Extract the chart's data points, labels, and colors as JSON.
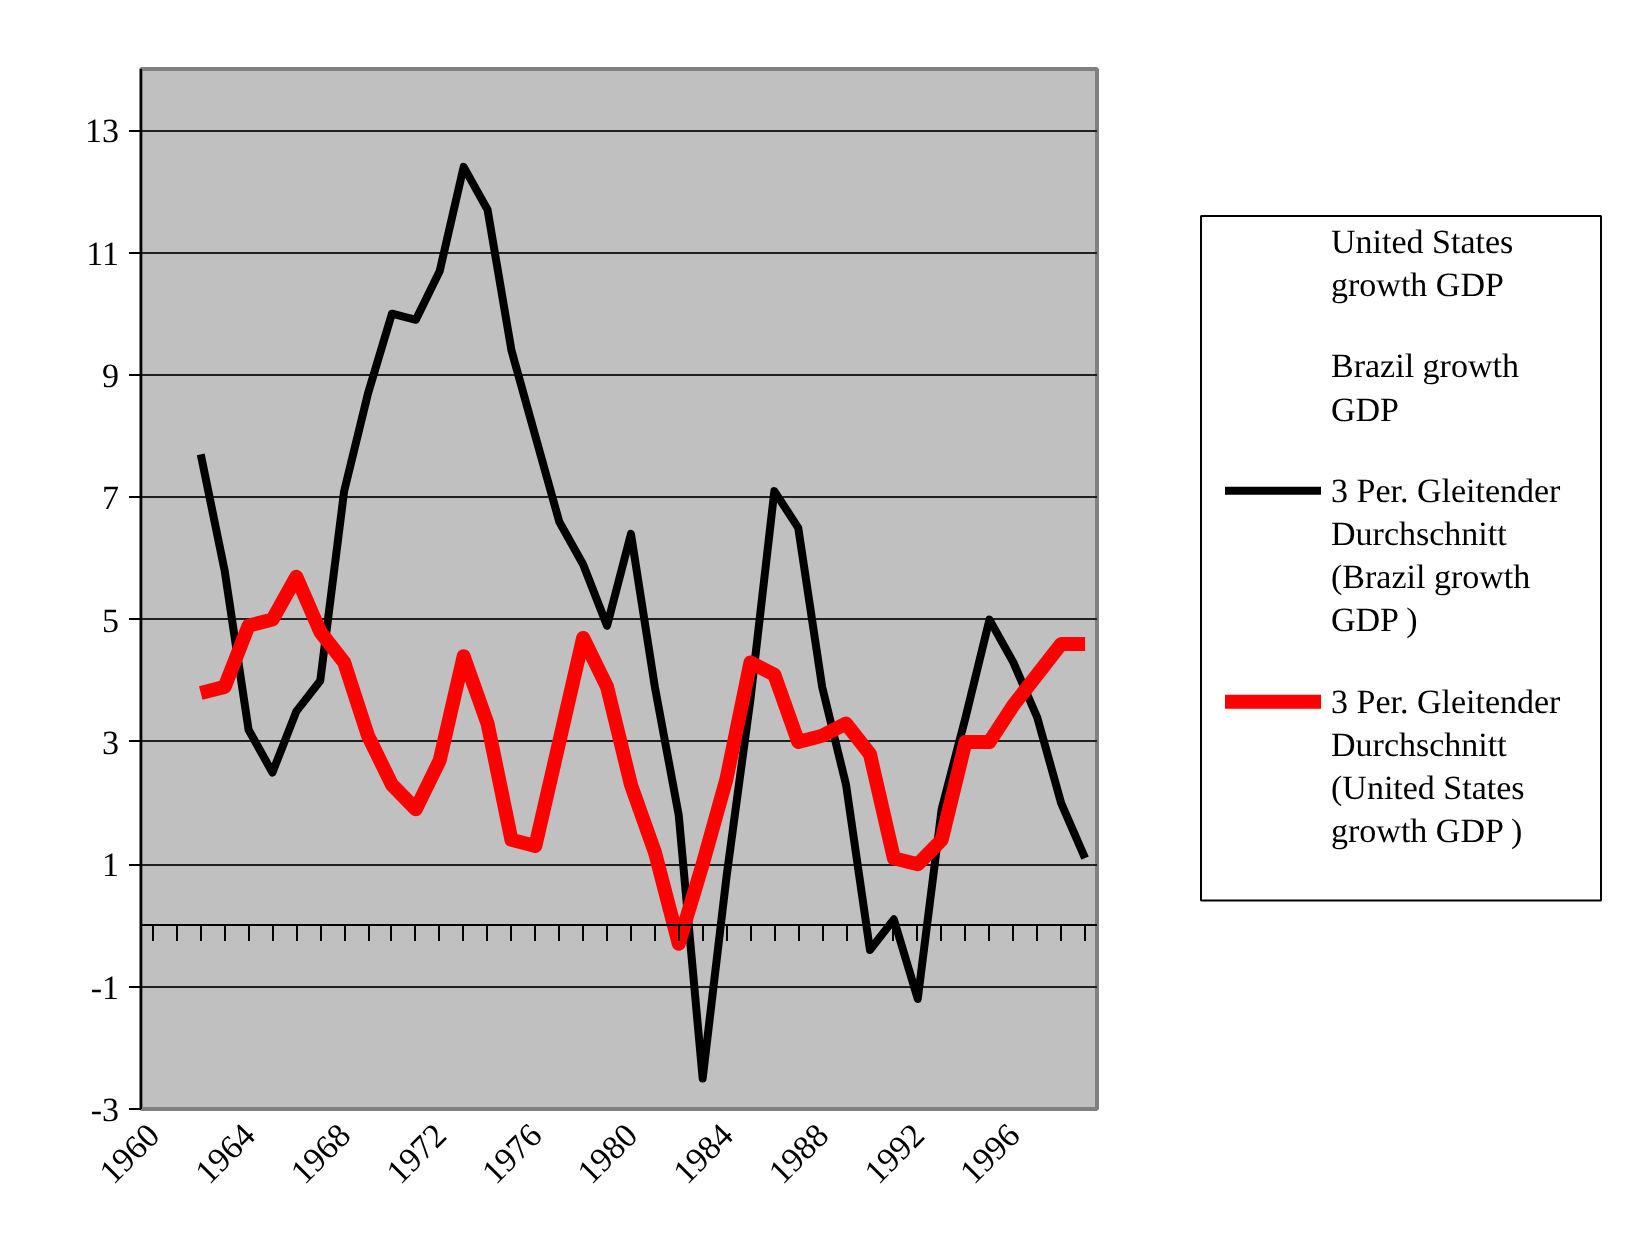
{
  "chart_data": {
    "type": "line",
    "x": [
      1962,
      1963,
      1964,
      1965,
      1966,
      1967,
      1968,
      1969,
      1970,
      1971,
      1972,
      1973,
      1974,
      1975,
      1976,
      1977,
      1978,
      1979,
      1980,
      1981,
      1982,
      1983,
      1984,
      1985,
      1986,
      1987,
      1988,
      1989,
      1990,
      1991,
      1992,
      1993,
      1994,
      1995,
      1996,
      1997,
      1998,
      1999
    ],
    "xlim": [
      1959.5,
      1999.5
    ],
    "xticks": [
      {
        "value": 1960,
        "label": "1960"
      },
      {
        "value": 1961,
        "label": null
      },
      {
        "value": 1962,
        "label": null
      },
      {
        "value": 1963,
        "label": null
      },
      {
        "value": 1964,
        "label": "1964"
      },
      {
        "value": 1965,
        "label": null
      },
      {
        "value": 1966,
        "label": null
      },
      {
        "value": 1967,
        "label": null
      },
      {
        "value": 1968,
        "label": "1968"
      },
      {
        "value": 1969,
        "label": null
      },
      {
        "value": 1970,
        "label": null
      },
      {
        "value": 1971,
        "label": null
      },
      {
        "value": 1972,
        "label": "1972"
      },
      {
        "value": 1973,
        "label": null
      },
      {
        "value": 1974,
        "label": null
      },
      {
        "value": 1975,
        "label": null
      },
      {
        "value": 1976,
        "label": "1976"
      },
      {
        "value": 1977,
        "label": null
      },
      {
        "value": 1978,
        "label": null
      },
      {
        "value": 1979,
        "label": null
      },
      {
        "value": 1980,
        "label": "1980"
      },
      {
        "value": 1981,
        "label": null
      },
      {
        "value": 1982,
        "label": null
      },
      {
        "value": 1983,
        "label": null
      },
      {
        "value": 1984,
        "label": "1984"
      },
      {
        "value": 1985,
        "label": null
      },
      {
        "value": 1986,
        "label": null
      },
      {
        "value": 1987,
        "label": null
      },
      {
        "value": 1988,
        "label": "1988"
      },
      {
        "value": 1989,
        "label": null
      },
      {
        "value": 1990,
        "label": null
      },
      {
        "value": 1991,
        "label": null
      },
      {
        "value": 1992,
        "label": "1992"
      },
      {
        "value": 1993,
        "label": null
      },
      {
        "value": 1994,
        "label": null
      },
      {
        "value": 1995,
        "label": null
      },
      {
        "value": 1996,
        "label": "1996"
      },
      {
        "value": 1997,
        "label": null
      },
      {
        "value": 1998,
        "label": null
      },
      {
        "value": 1999,
        "label": null
      }
    ],
    "ylim": [
      -3,
      14
    ],
    "yticks": [
      -3,
      -1,
      1,
      3,
      5,
      7,
      9,
      11,
      13
    ],
    "grid": "y",
    "legend": "right",
    "marker": "none",
    "series": [
      {
        "name": "United States growth GDP",
        "values": [
          null,
          null,
          null,
          null,
          null,
          null,
          null,
          null,
          null,
          null,
          null,
          null,
          null,
          null,
          null,
          null,
          null,
          null,
          null,
          null,
          null,
          null,
          null,
          null,
          null,
          null,
          null,
          null,
          null,
          null,
          null,
          null,
          null,
          null,
          null,
          null,
          null,
          null
        ]
      },
      {
        "name": "Brazil growth GDP",
        "values": [
          null,
          null,
          null,
          null,
          null,
          null,
          null,
          null,
          null,
          null,
          null,
          null,
          null,
          null,
          null,
          null,
          null,
          null,
          null,
          null,
          null,
          null,
          null,
          null,
          null,
          null,
          null,
          null,
          null,
          null,
          null,
          null,
          null,
          null,
          null,
          null,
          null,
          null
        ]
      },
      {
        "name": "3 Per. Gleitender Durchschnitt (Brazil growth GDP )",
        "color": "#000000",
        "values": [
          7.7,
          5.8,
          3.2,
          2.5,
          3.5,
          4.0,
          7.1,
          8.7,
          10.0,
          9.9,
          10.7,
          12.4,
          11.7,
          9.4,
          8.0,
          6.6,
          5.9,
          4.9,
          6.4,
          3.9,
          1.8,
          -2.5,
          0.8,
          3.7,
          7.1,
          6.5,
          3.9,
          2.3,
          -0.4,
          0.1,
          -1.2,
          1.9,
          3.4,
          5.0,
          4.3,
          3.4,
          2.0,
          1.1
        ]
      },
      {
        "name": "3 Per. Gleitender Durchschnitt (United States growth GDP )",
        "color": "#ff0000",
        "values": [
          3.8,
          3.9,
          4.9,
          5.0,
          5.7,
          4.8,
          4.3,
          3.1,
          2.3,
          1.9,
          2.7,
          4.4,
          3.3,
          1.4,
          1.3,
          3.0,
          4.7,
          3.9,
          2.3,
          1.2,
          -0.3,
          1.0,
          2.4,
          4.3,
          4.1,
          3.0,
          3.1,
          3.3,
          2.8,
          1.1,
          1.0,
          1.4,
          3.0,
          3.0,
          3.6,
          4.1,
          4.6,
          4.6
        ]
      }
    ]
  }
}
